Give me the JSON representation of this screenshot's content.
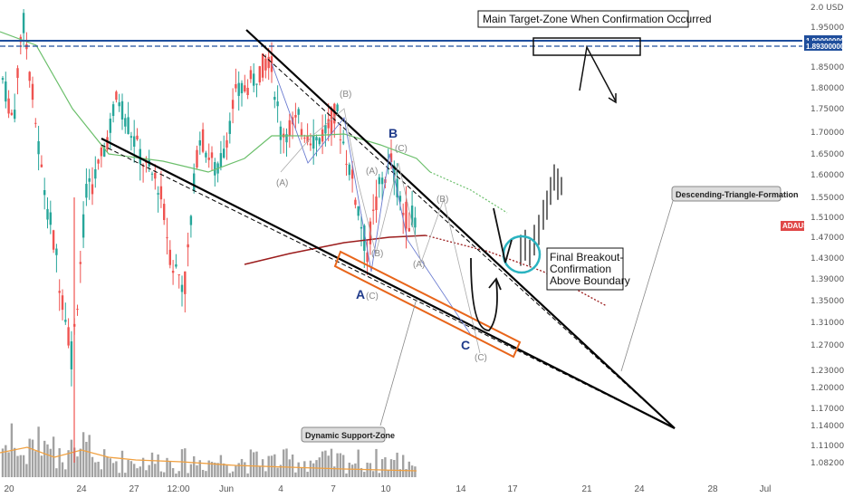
{
  "chart_data": {
    "type": "candlestick",
    "symbol": "ADAUSD",
    "currency": "USD",
    "x_ticks": [
      "20",
      "24",
      "27",
      "12:00",
      "Jun",
      "4",
      "7",
      "10",
      "14",
      "17",
      "21",
      "24",
      "28",
      "Jul"
    ],
    "y_ticks": [
      2.0,
      1.95,
      1.85,
      1.8,
      1.75,
      1.7,
      1.65,
      1.6,
      1.55,
      1.51,
      1.47,
      1.43,
      1.39,
      1.35,
      1.31,
      1.27,
      1.23,
      1.2,
      1.17,
      1.14,
      1.11,
      1.082
    ],
    "y_tick_labels": [
      "2.0 USD",
      "1.95000000",
      "1.85000000",
      "1.80000000",
      "1.75000000",
      "1.70000000",
      "1.65000000",
      "1.60000000",
      "1.55000000",
      "1.51000000",
      "1.47000000",
      "1.43000000",
      "1.39000000",
      "1.35000000",
      "1.31000000",
      "1.27000000",
      "1.23000000",
      "1.20000000",
      "1.17000000",
      "1.14000000",
      "1.11000000",
      "1.08200000"
    ],
    "horizontal_levels": [
      {
        "label": "1.90000000",
        "value": 1.9
      },
      {
        "label": "1.89300000",
        "value": 1.893
      }
    ],
    "price_badge": "ADAUSD",
    "annotations": {
      "target_zone": "Main Target-Zone When Confirmation Occurred",
      "triangle": "Descending-Triangle-Formation",
      "support": "Dynamic Support-Zone",
      "breakout": [
        "Final Breakout-",
        "Confirmation",
        "Above Boundary"
      ]
    },
    "wave_labels": {
      "main": [
        "A",
        "B",
        "C"
      ],
      "minor": [
        "(B)",
        "(A)",
        "(C)",
        "(A)",
        "(B)",
        "(C)",
        "(B)",
        "(A)",
        "(C)"
      ]
    },
    "colors": {
      "up": "#26a69a",
      "down": "#ef5350",
      "trendline": "#000000",
      "level": "#1f4e9c",
      "ma_long": "#9b1c1c",
      "ma_short": "#6bbf6b",
      "support_box": "#e8651a",
      "breakout_circle": "#2ab3c0",
      "volume": "#555555",
      "volume_ma": "#f0a040",
      "badge": "#e04848"
    }
  }
}
